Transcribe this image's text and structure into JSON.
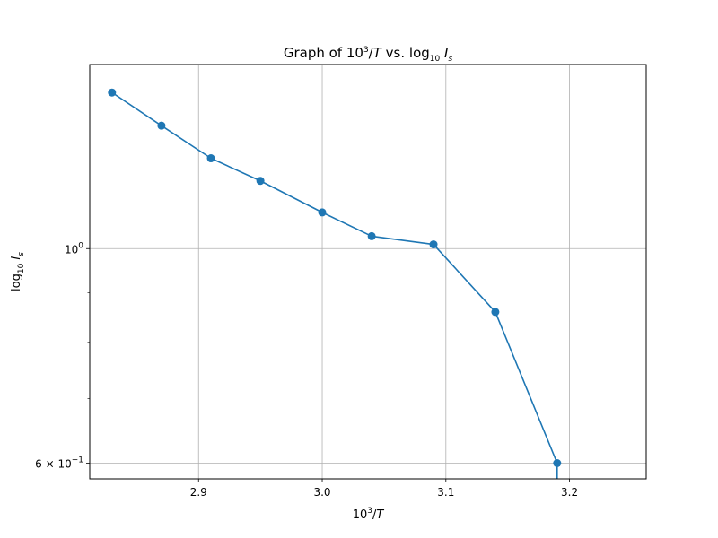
{
  "chart_data": {
    "type": "line",
    "title": {
      "pre": "Graph of 10",
      "sup": "3",
      "mid": "/",
      "it": "T",
      "post": " vs. log",
      "sub": "10",
      "space": " ",
      "it2": "I",
      "sub2": "s"
    },
    "xlabel": {
      "base": "10",
      "sup": "3",
      "slash": "/",
      "it": "T"
    },
    "ylabel": {
      "pre": "log",
      "sub": "10",
      "space": " ",
      "it": "I",
      "sub2": "s"
    },
    "xlim": [
      2.812,
      3.262
    ],
    "ylim": [
      0.578,
      1.55
    ],
    "yscale": "log",
    "grid": true,
    "x_ticks": [
      {
        "value": 2.9,
        "label": "2.9"
      },
      {
        "value": 3.0,
        "label": "3.0"
      },
      {
        "value": 3.1,
        "label": "3.1"
      },
      {
        "value": 3.2,
        "label": "3.2"
      }
    ],
    "y_major_ticks": [
      {
        "value": 1.0,
        "label": "10",
        "sup": "0"
      },
      {
        "value": 0.6,
        "label": "6 × 10",
        "sup": "−1"
      }
    ],
    "y_minor_ticks": [
      0.7,
      0.8,
      0.9
    ],
    "series": [
      {
        "color": "#1f77b4",
        "x": [
          2.83,
          2.87,
          2.91,
          2.95,
          3.0,
          3.04,
          3.09,
          3.14,
          3.19,
          3.19
        ],
        "y": [
          1.45,
          1.34,
          1.24,
          1.175,
          1.09,
          1.03,
          1.01,
          0.86,
          0.6,
          0.55
        ],
        "markers": [
          true,
          true,
          true,
          true,
          true,
          true,
          true,
          true,
          true,
          false
        ]
      }
    ]
  }
}
